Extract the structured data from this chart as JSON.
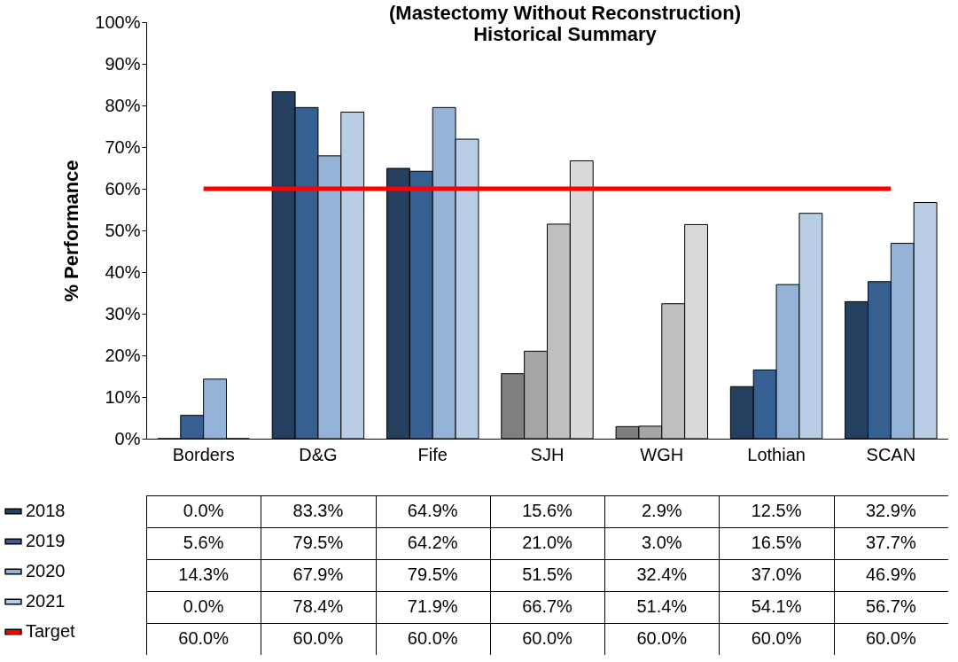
{
  "chart_data": {
    "type": "bar",
    "title": "(Mastectomy Without Reconstruction)\nHistorical Summary",
    "ylabel": "% Performance",
    "categories": [
      "Borders",
      "D&G",
      "Fife",
      "SJH",
      "WGH",
      "Lothian",
      "SCAN"
    ],
    "ylim": [
      0,
      100
    ],
    "yticks": [
      {
        "value": 0,
        "label": "0%"
      },
      {
        "value": 10,
        "label": "10%"
      },
      {
        "value": 20,
        "label": "20%"
      },
      {
        "value": 30,
        "label": "30%"
      },
      {
        "value": 40,
        "label": "40%"
      },
      {
        "value": 50,
        "label": "50%"
      },
      {
        "value": 60,
        "label": "60%"
      },
      {
        "value": 70,
        "label": "70%"
      },
      {
        "value": 80,
        "label": "80%"
      },
      {
        "value": 90,
        "label": "90%"
      },
      {
        "value": 100,
        "label": "100%"
      }
    ],
    "grid": false,
    "legend": "bottom left",
    "series": [
      {
        "name": "2018",
        "color": "#243f60",
        "colors": [
          "#243f60",
          "#243f60",
          "#243f60",
          "#7f7f7f",
          "#7f7f7f",
          "#243f60",
          "#243f60"
        ],
        "values": [
          0.0,
          83.3,
          64.9,
          15.6,
          2.9,
          12.5,
          32.9
        ],
        "value_labels": [
          "0.0%",
          "83.3%",
          "64.9%",
          "15.6%",
          "2.9%",
          "12.5%",
          "32.9%"
        ]
      },
      {
        "name": "2019",
        "color": "#376092",
        "colors": [
          "#376092",
          "#376092",
          "#376092",
          "#a6a6a6",
          "#a6a6a6",
          "#376092",
          "#376092"
        ],
        "values": [
          5.6,
          79.5,
          64.2,
          21.0,
          3.0,
          16.5,
          37.7
        ],
        "value_labels": [
          "5.6%",
          "79.5%",
          "64.2%",
          "21.0%",
          "3.0%",
          "16.5%",
          "37.7%"
        ]
      },
      {
        "name": "2020",
        "color": "#95b3d7",
        "colors": [
          "#95b3d7",
          "#95b3d7",
          "#95b3d7",
          "#bfbfbf",
          "#bfbfbf",
          "#95b3d7",
          "#95b3d7"
        ],
        "values": [
          14.3,
          67.9,
          79.5,
          51.5,
          32.4,
          37.0,
          46.9
        ],
        "value_labels": [
          "14.3%",
          "67.9%",
          "79.5%",
          "51.5%",
          "32.4%",
          "37.0%",
          "46.9%"
        ]
      },
      {
        "name": "2021",
        "color": "#b9cde5",
        "colors": [
          "#b9cde5",
          "#b9cde5",
          "#b9cde5",
          "#d9d9d9",
          "#d9d9d9",
          "#b9cde5",
          "#b9cde5"
        ],
        "values": [
          0.0,
          78.4,
          71.9,
          66.7,
          51.4,
          54.1,
          56.7
        ],
        "value_labels": [
          "0.0%",
          "78.4%",
          "71.9%",
          "66.7%",
          "51.4%",
          "54.1%",
          "56.7%"
        ]
      },
      {
        "name": "Target",
        "type": "line",
        "color": "#ff0000",
        "values": [
          60.0,
          60.0,
          60.0,
          60.0,
          60.0,
          60.0,
          60.0
        ],
        "value_labels": [
          "60.0%",
          "60.0%",
          "60.0%",
          "60.0%",
          "60.0%",
          "60.0%",
          "60.0%"
        ]
      }
    ]
  }
}
